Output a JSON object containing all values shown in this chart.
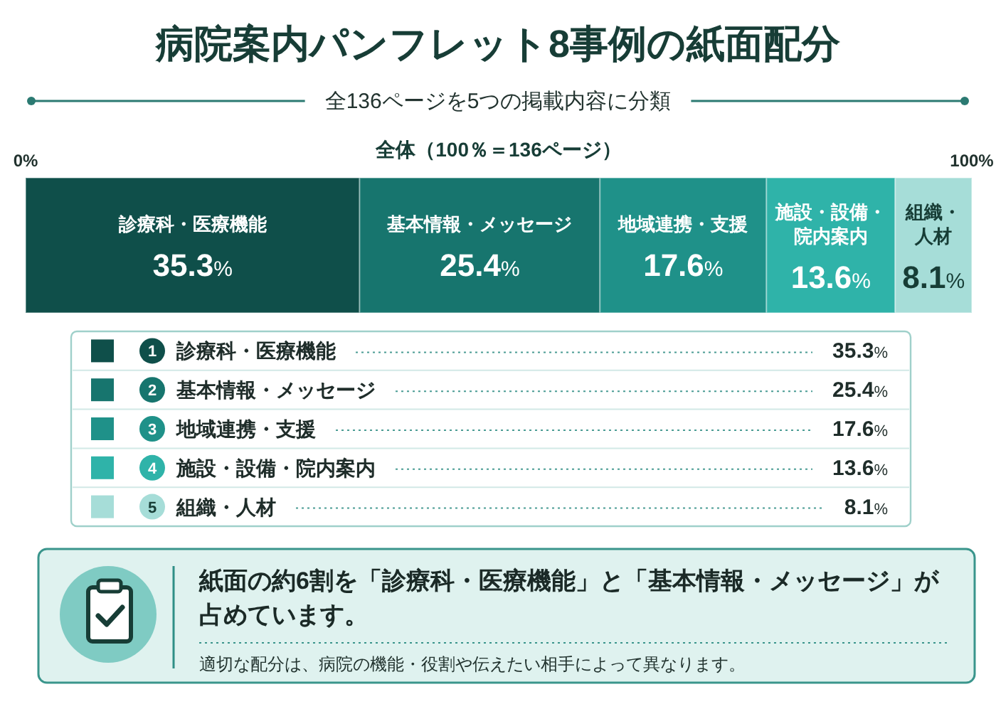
{
  "chart_data": {
    "type": "bar",
    "stacked": true,
    "orientation": "horizontal",
    "title": "病院案内パンフレット8事例の紙面配分",
    "subtitle": "全136ページを5つの掲載内容に分類",
    "categories": [
      "全体（100％＝136ページ）"
    ],
    "xlim": [
      0,
      100
    ],
    "xticks": [
      {
        "value": 0,
        "label": "0%"
      },
      {
        "value": 100,
        "label": "100%"
      }
    ],
    "series": [
      {
        "name": "診療科・医療機能",
        "color": "#0f4f4a",
        "values": [
          35.3
        ],
        "value_labels": [
          "35.3%"
        ]
      },
      {
        "name": "基本情報・メッセージ",
        "color": "#17756e",
        "values": [
          25.4
        ],
        "value_labels": [
          "25.4%"
        ]
      },
      {
        "name": "地域連携・支援",
        "color": "#1f9189",
        "values": [
          17.6
        ],
        "value_labels": [
          "17.6%"
        ]
      },
      {
        "name": "施設・設備・院内案内",
        "color": "#2fb3a9",
        "values": [
          13.6
        ],
        "value_labels": [
          "13.6%"
        ]
      },
      {
        "name": "組織・人材",
        "color": "#a6ddd8",
        "values": [
          8.1
        ],
        "value_labels": [
          "8.1%"
        ]
      }
    ],
    "legend": "bottom",
    "annotations": [
      "1",
      "2",
      "3",
      "4",
      "5",
      "紙面の約6割を「診療科・医療機能」と「基本情報・メッセージ」が占めています。",
      "適切な配分は、病院の機能・役割や伝えたい相手によって異なります。"
    ]
  }
}
